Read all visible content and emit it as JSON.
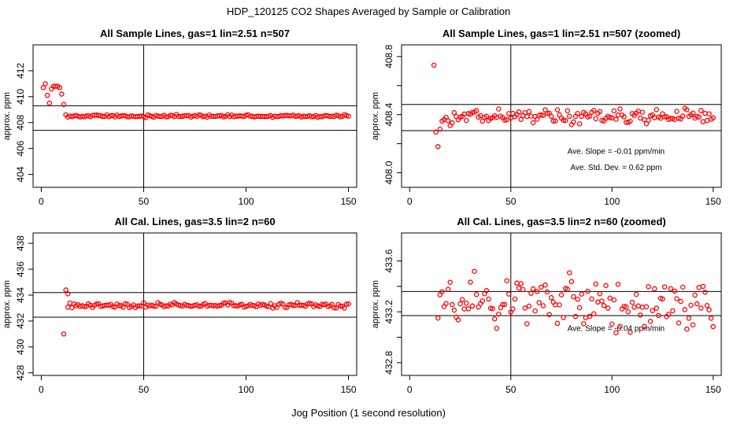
{
  "title": "HDP_120125  CO2 Shapes Averaged by Sample or Calibration",
  "xlabel": "Jog Position (1 second resolution)",
  "chart_data": [
    {
      "type": "scatter",
      "title": "All Sample Lines, gas=1 lin=2.51 n=507",
      "ylabel": "approx. ppm",
      "xlim": [
        -4,
        154
      ],
      "ylim": [
        403,
        414
      ],
      "xticks": [
        0,
        50,
        100,
        150
      ],
      "yticks": [
        404,
        406,
        408,
        410,
        412
      ],
      "ytick_labels": [
        "404",
        "406",
        "408",
        "410",
        "412"
      ],
      "hlines": [
        409.3,
        407.4
      ],
      "vline": 50,
      "annotations": [],
      "series_gen": {
        "kind": "plateau",
        "start": 13,
        "end": 150,
        "base": 408.5,
        "noise": 0.05,
        "lead": [
          [
            1,
            410.7
          ],
          [
            2,
            411.0
          ],
          [
            3,
            410.1
          ],
          [
            4,
            409.5
          ],
          [
            5,
            410.6
          ],
          [
            6,
            410.8
          ],
          [
            7,
            410.8
          ],
          [
            8,
            410.8
          ],
          [
            9,
            410.7
          ],
          [
            10,
            410.2
          ],
          [
            11,
            409.4
          ],
          [
            12,
            408.6
          ]
        ]
      }
    },
    {
      "type": "scatter",
      "title": "All Sample Lines, gas=1 lin=2.51 n=507 (zoomed)",
      "ylabel": "approx. ppm",
      "xlim": [
        -4,
        154
      ],
      "ylim": [
        407.9,
        408.88
      ],
      "xticks": [
        0,
        50,
        100,
        150
      ],
      "yticks": [
        408.0,
        408.2,
        408.4,
        408.6,
        408.8
      ],
      "ytick_labels": [
        "408.0",
        "",
        "408.4",
        "",
        "408.8"
      ],
      "hlines": [
        408.47,
        408.29
      ],
      "vline": 50,
      "annotations": [
        {
          "text": "Ave. Slope =  -0.01  ppm/min",
          "x": 102,
          "y": 408.13
        },
        {
          "text": "Ave. Std. Dev. =  0.62  ppm",
          "x": 102,
          "y": 408.02
        }
      ],
      "series_gen": {
        "kind": "plateau",
        "start": 16,
        "end": 150,
        "base": 408.39,
        "noise": 0.025,
        "lead": [
          [
            12,
            408.74
          ],
          [
            13,
            408.28
          ],
          [
            14,
            408.18
          ],
          [
            15,
            408.3
          ]
        ]
      }
    },
    {
      "type": "scatter",
      "title": "All Cal. Lines, gas=3.5 lin=2 n=60",
      "ylabel": "approx. ppm",
      "xlim": [
        -4,
        154
      ],
      "ylim": [
        427.8,
        438.8
      ],
      "xticks": [
        0,
        50,
        100,
        150
      ],
      "yticks": [
        428,
        430,
        432,
        434,
        436,
        438
      ],
      "ytick_labels": [
        "428",
        "430",
        "432",
        "434",
        "436",
        "438"
      ],
      "hlines": [
        434.2,
        432.3
      ],
      "vline": 50,
      "annotations": [],
      "series_gen": {
        "kind": "plateau",
        "start": 13,
        "end": 150,
        "base": 433.2,
        "noise": 0.1,
        "lead": [
          [
            11,
            431.0
          ],
          [
            12,
            434.4
          ],
          [
            13,
            434.1
          ]
        ]
      }
    },
    {
      "type": "scatter",
      "title": "All Cal. Lines, gas=3.5 lin=2 n=60 (zoomed)",
      "ylabel": "approx. ppm",
      "xlim": [
        -4,
        154
      ],
      "ylim": [
        432.7,
        433.82
      ],
      "xticks": [
        0,
        50,
        100,
        150
      ],
      "yticks": [
        432.8,
        433.0,
        433.2,
        433.4,
        433.6
      ],
      "ytick_labels": [
        "432.8",
        "",
        "433.2",
        "",
        "433.6"
      ],
      "hlines": [
        433.36,
        433.17
      ],
      "vline": 50,
      "annotations": [
        {
          "text": "Ave. Slope =  -0.04  ppm/min",
          "x": 102,
          "y": 433.05
        }
      ],
      "series_gen": {
        "kind": "plateau",
        "start": 14,
        "end": 150,
        "base": 433.27,
        "noise": 0.1,
        "lead": []
      }
    }
  ]
}
